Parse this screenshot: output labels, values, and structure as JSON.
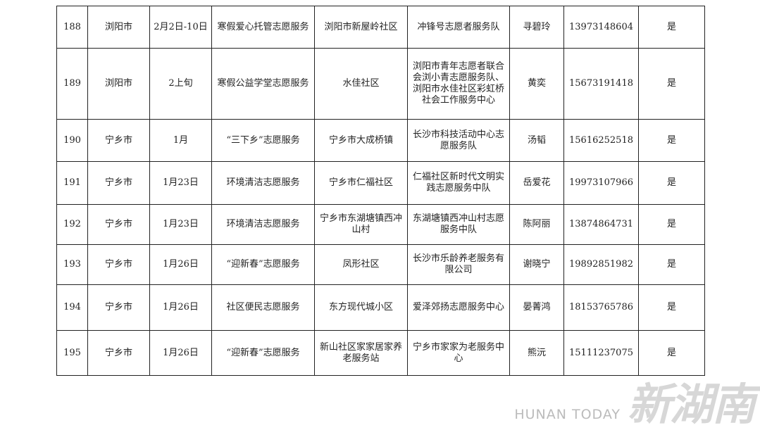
{
  "rows": [
    {
      "no": "188",
      "city": "浏阳市",
      "time": "2月2日-10日",
      "activity": "寒假爱心托管志愿服务",
      "place": "浏阳市新屋岭社区",
      "org": "冲锋号志愿者服务队",
      "contact": "寻碧玲",
      "phone": "13973148604",
      "flag": "是"
    },
    {
      "no": "189",
      "city": "浏阳市",
      "time": "2上旬",
      "activity": "寒假公益学堂志愿服务",
      "place": "水佳社区",
      "org": "浏阳市青年志愿者联合会浏小青志愿服务队、浏阳市水佳社区彩虹桥社会工作服务中心",
      "contact": "黄奕",
      "phone": "15673191418",
      "flag": "是"
    },
    {
      "no": "190",
      "city": "宁乡市",
      "time": "1月",
      "activity": "“三下乡”志愿服务",
      "place": "宁乡市大成桥镇",
      "org": "长沙市科技活动中心志愿服务队",
      "contact": "汤韬",
      "phone": "15616252518",
      "flag": "是"
    },
    {
      "no": "191",
      "city": "宁乡市",
      "time": "1月23日",
      "activity": "环境清洁志愿服务",
      "place": "宁乡市仁福社区",
      "org": "仁福社区新时代文明实践志愿服务中队",
      "contact": "岳爱花",
      "phone": "19973107966",
      "flag": "是"
    },
    {
      "no": "192",
      "city": "宁乡市",
      "time": "1月23日",
      "activity": "环境清洁志愿服务",
      "place": "宁乡市东湖塘镇西冲山村",
      "org": "东湖塘镇西冲山村志愿服务中队",
      "contact": "陈阿丽",
      "phone": "13874864731",
      "flag": "是"
    },
    {
      "no": "193",
      "city": "宁乡市",
      "time": "1月26日",
      "activity": "“迎新春”志愿服务",
      "place": "凤形社区",
      "org": "长沙市乐龄养老服务有限公司",
      "contact": "谢晓宁",
      "phone": "19892851982",
      "flag": "是"
    },
    {
      "no": "194",
      "city": "宁乡市",
      "time": "1月26日",
      "activity": "社区便民志愿服务",
      "place": "东方现代城小区",
      "org": "爱泽郊扬志愿服务中心",
      "contact": "晏菁鸿",
      "phone": "18153765786",
      "flag": "是"
    },
    {
      "no": "195",
      "city": "宁乡市",
      "time": "1月26日",
      "activity": "“迎新春”志愿服务",
      "place": "新山社区家家居家养老服务站",
      "org": "宁乡市家家为老服务中心",
      "contact": "熊沅",
      "phone": "15111237075",
      "flag": "是"
    }
  ],
  "watermark": {
    "cn": "新湖南",
    "en": "HUNAN TODAY"
  }
}
